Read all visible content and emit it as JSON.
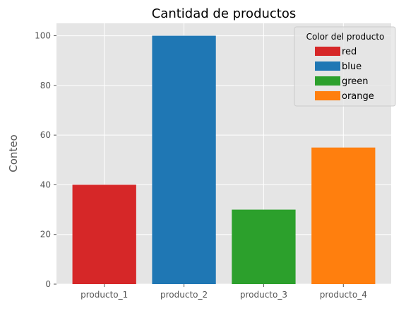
{
  "chart_data": {
    "type": "bar",
    "title": "Cantidad de productos",
    "xlabel": "",
    "ylabel": "Conteo",
    "categories": [
      "producto_1",
      "producto_2",
      "producto_3",
      "producto_4"
    ],
    "values": [
      40,
      100,
      30,
      55
    ],
    "colors": [
      "#d62728",
      "#1f77b4",
      "#2ca02c",
      "#ff7f0e"
    ],
    "ylim": [
      0,
      105
    ],
    "yticks": [
      0,
      20,
      40,
      60,
      80,
      100
    ],
    "grid": true,
    "legend": {
      "title": "Color del producto",
      "placement": "top-right",
      "entries": [
        {
          "label": "red",
          "color": "#d62728"
        },
        {
          "label": "blue",
          "color": "#1f77b4"
        },
        {
          "label": "green",
          "color": "#2ca02c"
        },
        {
          "label": "orange",
          "color": "#ff7f0e"
        }
      ]
    }
  }
}
